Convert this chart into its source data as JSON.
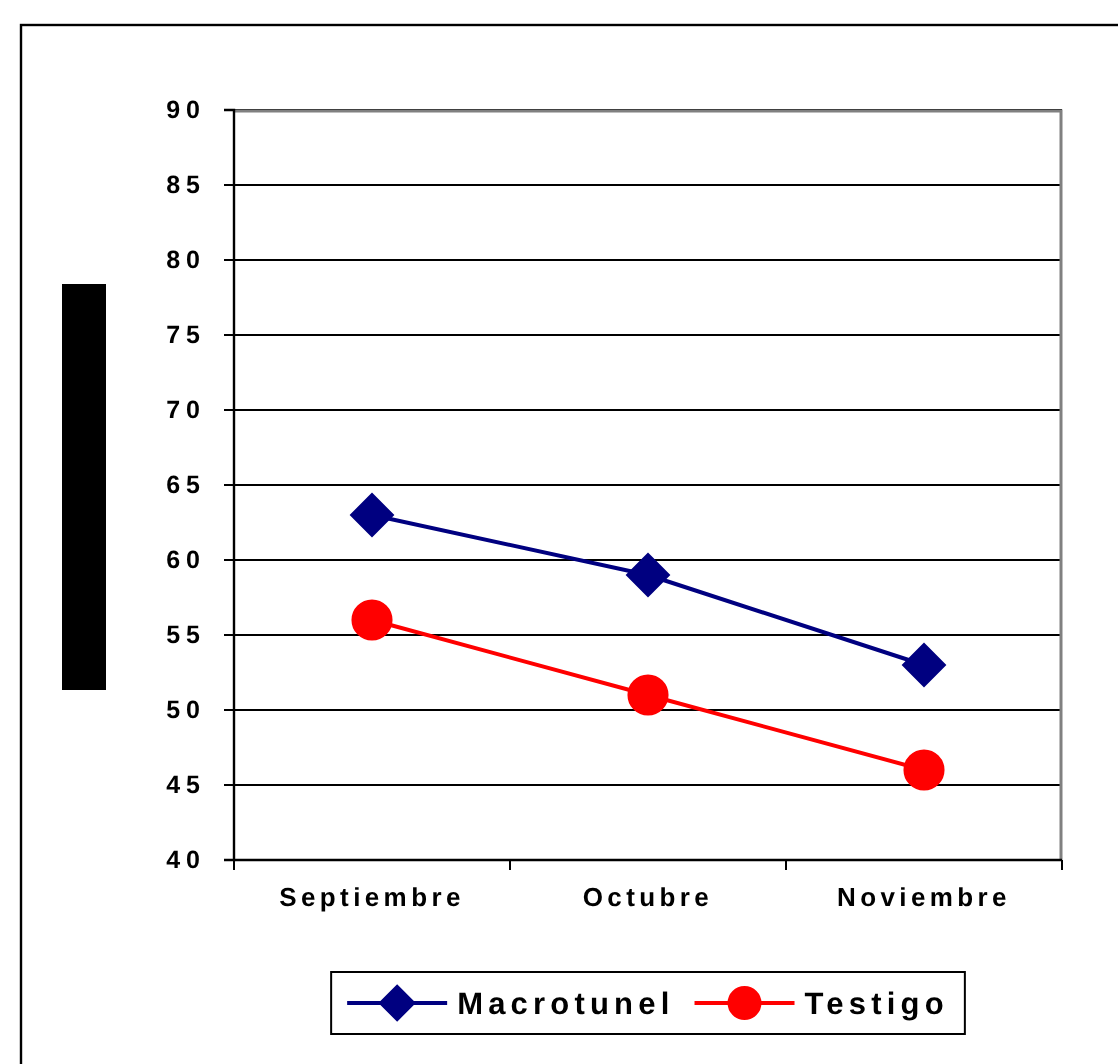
{
  "chart_data": {
    "type": "line",
    "categories": [
      "Septiembre",
      "Octubre",
      "Noviembre"
    ],
    "series": [
      {
        "name": "Macrotunel",
        "color": "#000080",
        "values": [
          63,
          59,
          53
        ],
        "marker": "diamond"
      },
      {
        "name": "Testigo",
        "color": "#ff0000",
        "values": [
          56,
          51,
          46
        ],
        "marker": "circle"
      }
    ],
    "ylim": [
      40,
      90
    ],
    "yticks": [
      40,
      45,
      50,
      55,
      60,
      65,
      70,
      75,
      80,
      85,
      90
    ],
    "grid": "y",
    "legend": "bottom"
  }
}
